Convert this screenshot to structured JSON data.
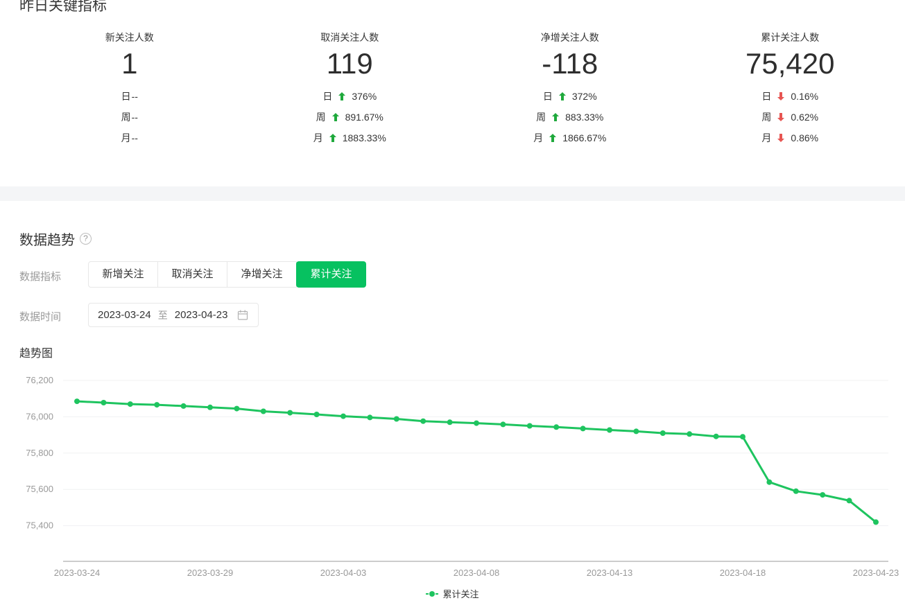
{
  "colors": {
    "brand_green": "#07C160",
    "line_green": "#1ec45f",
    "up_green": "#1fa93c",
    "down_red": "#e75552",
    "text": "#353535",
    "muted": "#9a9a9a",
    "axis_text": "#999999",
    "grid_line": "#f0f1f2",
    "axis_line": "#cccccc",
    "separator_band": "#f4f5f7",
    "border": "#e7e7e7"
  },
  "key_metrics": {
    "title": "昨日关键指标",
    "cards": [
      {
        "label": "新关注人数",
        "value": "1",
        "rows": [
          {
            "period": "日",
            "dir": "none",
            "value": "--"
          },
          {
            "period": "周",
            "dir": "none",
            "value": "--"
          },
          {
            "period": "月",
            "dir": "none",
            "value": "--"
          }
        ]
      },
      {
        "label": "取消关注人数",
        "value": "119",
        "rows": [
          {
            "period": "日",
            "dir": "up",
            "value": "376%"
          },
          {
            "period": "周",
            "dir": "up",
            "value": "891.67%"
          },
          {
            "period": "月",
            "dir": "up",
            "value": "1883.33%"
          }
        ]
      },
      {
        "label": "净增关注人数",
        "value": "-118",
        "rows": [
          {
            "period": "日",
            "dir": "up",
            "value": "372%"
          },
          {
            "period": "周",
            "dir": "up",
            "value": "883.33%"
          },
          {
            "period": "月",
            "dir": "up",
            "value": "1866.67%"
          }
        ]
      },
      {
        "label": "累计关注人数",
        "value": "75,420",
        "rows": [
          {
            "period": "日",
            "dir": "down",
            "value": "0.16%"
          },
          {
            "period": "周",
            "dir": "down",
            "value": "0.62%"
          },
          {
            "period": "月",
            "dir": "down",
            "value": "0.86%"
          }
        ]
      }
    ]
  },
  "trend_section": {
    "title": "数据趋势",
    "metric_label": "数据指标",
    "tabs": [
      {
        "label": "新增关注",
        "active": false
      },
      {
        "label": "取消关注",
        "active": false
      },
      {
        "label": "净增关注",
        "active": false
      },
      {
        "label": "累计关注",
        "active": true
      }
    ],
    "time_label": "数据时间",
    "date_range": {
      "start": "2023-03-24",
      "separator": "至",
      "end": "2023-04-23"
    },
    "chart_title": "趋势图",
    "legend": "累计关注"
  },
  "chart_data": {
    "type": "line",
    "title": "趋势图",
    "grid": true,
    "legend_position": "bottom",
    "x": [
      "2023-03-24",
      "2023-03-25",
      "2023-03-26",
      "2023-03-27",
      "2023-03-28",
      "2023-03-29",
      "2023-03-30",
      "2023-03-31",
      "2023-04-01",
      "2023-04-02",
      "2023-04-03",
      "2023-04-04",
      "2023-04-05",
      "2023-04-06",
      "2023-04-07",
      "2023-04-08",
      "2023-04-09",
      "2023-04-10",
      "2023-04-11",
      "2023-04-12",
      "2023-04-13",
      "2023-04-14",
      "2023-04-15",
      "2023-04-16",
      "2023-04-17",
      "2023-04-18",
      "2023-04-19",
      "2023-04-20",
      "2023-04-21",
      "2023-04-22",
      "2023-04-23"
    ],
    "x_tick_labels": [
      "2023-03-24",
      "2023-03-29",
      "2023-04-03",
      "2023-04-08",
      "2023-04-13",
      "2023-04-18",
      "2023-04-23"
    ],
    "y_ticks": [
      76200,
      76000,
      75800,
      75600,
      75400
    ],
    "y_tick_labels": [
      "76,200",
      "76,000",
      "75,800",
      "75,600",
      "75,400"
    ],
    "ylim": [
      75200,
      76200
    ],
    "series": [
      {
        "name": "累计关注",
        "color": "#1ec45f",
        "values": [
          76085,
          76078,
          76070,
          76066,
          76059,
          76052,
          76045,
          76030,
          76022,
          76013,
          76003,
          75996,
          75988,
          75976,
          75970,
          75965,
          75958,
          75950,
          75943,
          75935,
          75927,
          75920,
          75910,
          75905,
          75892,
          75890,
          75640,
          75590,
          75570,
          75538,
          75420
        ]
      }
    ]
  }
}
